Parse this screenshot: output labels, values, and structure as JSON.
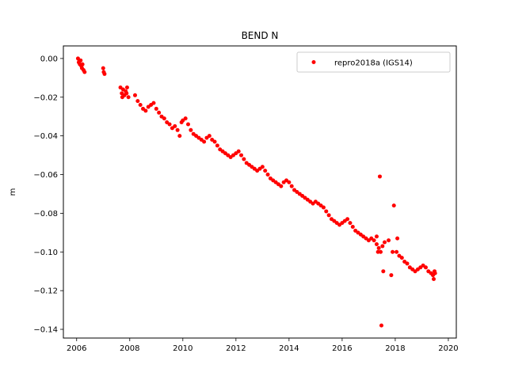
{
  "chart_data": {
    "type": "scatter",
    "title": "BEND N",
    "xlabel": "",
    "ylabel": "m",
    "xlim": [
      2005.5,
      2020.3
    ],
    "ylim": [
      -0.1445,
      0.0065
    ],
    "xticks": [
      2006,
      2008,
      2010,
      2012,
      2014,
      2016,
      2018,
      2020
    ],
    "yticks": [
      0.0,
      -0.02,
      -0.04,
      -0.06,
      -0.08,
      -0.1,
      -0.12,
      -0.14
    ],
    "ytick_labels": [
      "0.00",
      "−0.02",
      "−0.04",
      "−0.06",
      "−0.08",
      "−0.10",
      "−0.12",
      "−0.14"
    ],
    "grid": false,
    "legend_position": "top-right",
    "series": [
      {
        "name": "repro2018a (IGS14)",
        "color": "#ff0000",
        "marker": "circle",
        "points": [
          [
            2006.05,
            0.0
          ],
          [
            2006.08,
            -0.002
          ],
          [
            2006.12,
            -0.003
          ],
          [
            2006.15,
            -0.001
          ],
          [
            2006.18,
            -0.004
          ],
          [
            2006.22,
            -0.003
          ],
          [
            2006.26,
            -0.006
          ],
          [
            2006.3,
            -0.007
          ],
          [
            2006.1,
            -0.001
          ],
          [
            2006.2,
            -0.005
          ],
          [
            2007.0,
            -0.005
          ],
          [
            2007.02,
            -0.007
          ],
          [
            2007.05,
            -0.008
          ],
          [
            2007.65,
            -0.015
          ],
          [
            2007.7,
            -0.018
          ],
          [
            2007.75,
            -0.016
          ],
          [
            2007.8,
            -0.019
          ],
          [
            2007.85,
            -0.017
          ],
          [
            2007.9,
            -0.015
          ],
          [
            2007.95,
            -0.02
          ],
          [
            2007.72,
            -0.02
          ],
          [
            2007.88,
            -0.018
          ],
          [
            2008.2,
            -0.019
          ],
          [
            2008.3,
            -0.022
          ],
          [
            2008.4,
            -0.024
          ],
          [
            2008.5,
            -0.026
          ],
          [
            2008.6,
            -0.027
          ],
          [
            2008.7,
            -0.025
          ],
          [
            2008.8,
            -0.024
          ],
          [
            2008.9,
            -0.023
          ],
          [
            2009.0,
            -0.026
          ],
          [
            2009.1,
            -0.028
          ],
          [
            2009.2,
            -0.03
          ],
          [
            2009.3,
            -0.031
          ],
          [
            2009.4,
            -0.033
          ],
          [
            2009.5,
            -0.034
          ],
          [
            2009.6,
            -0.036
          ],
          [
            2009.7,
            -0.035
          ],
          [
            2009.8,
            -0.037
          ],
          [
            2009.88,
            -0.04
          ],
          [
            2009.95,
            -0.033
          ],
          [
            2010.0,
            -0.032
          ],
          [
            2010.1,
            -0.031
          ],
          [
            2010.2,
            -0.034
          ],
          [
            2010.3,
            -0.037
          ],
          [
            2010.4,
            -0.039
          ],
          [
            2010.5,
            -0.04
          ],
          [
            2010.6,
            -0.041
          ],
          [
            2010.7,
            -0.042
          ],
          [
            2010.8,
            -0.043
          ],
          [
            2010.9,
            -0.041
          ],
          [
            2011.0,
            -0.04
          ],
          [
            2011.1,
            -0.042
          ],
          [
            2011.2,
            -0.043
          ],
          [
            2011.3,
            -0.045
          ],
          [
            2011.4,
            -0.047
          ],
          [
            2011.5,
            -0.048
          ],
          [
            2011.6,
            -0.049
          ],
          [
            2011.7,
            -0.05
          ],
          [
            2011.8,
            -0.051
          ],
          [
            2011.9,
            -0.05
          ],
          [
            2012.0,
            -0.049
          ],
          [
            2012.1,
            -0.048
          ],
          [
            2012.2,
            -0.05
          ],
          [
            2012.3,
            -0.052
          ],
          [
            2012.4,
            -0.054
          ],
          [
            2012.5,
            -0.055
          ],
          [
            2012.6,
            -0.056
          ],
          [
            2012.7,
            -0.057
          ],
          [
            2012.8,
            -0.058
          ],
          [
            2012.9,
            -0.057
          ],
          [
            2013.0,
            -0.056
          ],
          [
            2013.1,
            -0.058
          ],
          [
            2013.2,
            -0.06
          ],
          [
            2013.3,
            -0.062
          ],
          [
            2013.4,
            -0.063
          ],
          [
            2013.5,
            -0.064
          ],
          [
            2013.6,
            -0.065
          ],
          [
            2013.7,
            -0.066
          ],
          [
            2013.8,
            -0.064
          ],
          [
            2013.9,
            -0.063
          ],
          [
            2014.0,
            -0.064
          ],
          [
            2014.1,
            -0.066
          ],
          [
            2014.2,
            -0.068
          ],
          [
            2014.3,
            -0.069
          ],
          [
            2014.4,
            -0.07
          ],
          [
            2014.5,
            -0.071
          ],
          [
            2014.6,
            -0.072
          ],
          [
            2014.7,
            -0.073
          ],
          [
            2014.8,
            -0.074
          ],
          [
            2014.9,
            -0.075
          ],
          [
            2015.0,
            -0.074
          ],
          [
            2015.1,
            -0.075
          ],
          [
            2015.2,
            -0.076
          ],
          [
            2015.3,
            -0.077
          ],
          [
            2015.4,
            -0.079
          ],
          [
            2015.5,
            -0.081
          ],
          [
            2015.6,
            -0.083
          ],
          [
            2015.7,
            -0.084
          ],
          [
            2015.8,
            -0.085
          ],
          [
            2015.9,
            -0.086
          ],
          [
            2016.0,
            -0.085
          ],
          [
            2016.1,
            -0.084
          ],
          [
            2016.2,
            -0.083
          ],
          [
            2016.3,
            -0.085
          ],
          [
            2016.4,
            -0.087
          ],
          [
            2016.5,
            -0.089
          ],
          [
            2016.6,
            -0.09
          ],
          [
            2016.7,
            -0.091
          ],
          [
            2016.8,
            -0.092
          ],
          [
            2016.9,
            -0.093
          ],
          [
            2017.0,
            -0.094
          ],
          [
            2017.1,
            -0.093
          ],
          [
            2017.2,
            -0.094
          ],
          [
            2017.3,
            -0.096
          ],
          [
            2017.38,
            -0.098
          ],
          [
            2017.42,
            -0.061
          ],
          [
            2017.45,
            -0.1
          ],
          [
            2017.48,
            -0.138
          ],
          [
            2017.52,
            -0.097
          ],
          [
            2017.55,
            -0.11
          ],
          [
            2017.6,
            -0.095
          ],
          [
            2017.75,
            -0.094
          ],
          [
            2017.85,
            -0.112
          ],
          [
            2017.9,
            -0.1
          ],
          [
            2017.95,
            -0.076
          ],
          [
            2018.05,
            -0.1
          ],
          [
            2018.08,
            -0.093
          ],
          [
            2018.15,
            -0.102
          ],
          [
            2018.25,
            -0.103
          ],
          [
            2018.35,
            -0.105
          ],
          [
            2018.45,
            -0.106
          ],
          [
            2018.55,
            -0.108
          ],
          [
            2018.65,
            -0.109
          ],
          [
            2018.75,
            -0.11
          ],
          [
            2018.85,
            -0.109
          ],
          [
            2018.95,
            -0.108
          ],
          [
            2019.05,
            -0.107
          ],
          [
            2019.15,
            -0.108
          ],
          [
            2019.25,
            -0.11
          ],
          [
            2019.35,
            -0.111
          ],
          [
            2019.42,
            -0.112
          ],
          [
            2019.45,
            -0.114
          ],
          [
            2019.48,
            -0.11
          ],
          [
            2019.5,
            -0.111
          ],
          [
            2017.3,
            -0.092
          ],
          [
            2017.35,
            -0.1
          ]
        ]
      }
    ]
  }
}
